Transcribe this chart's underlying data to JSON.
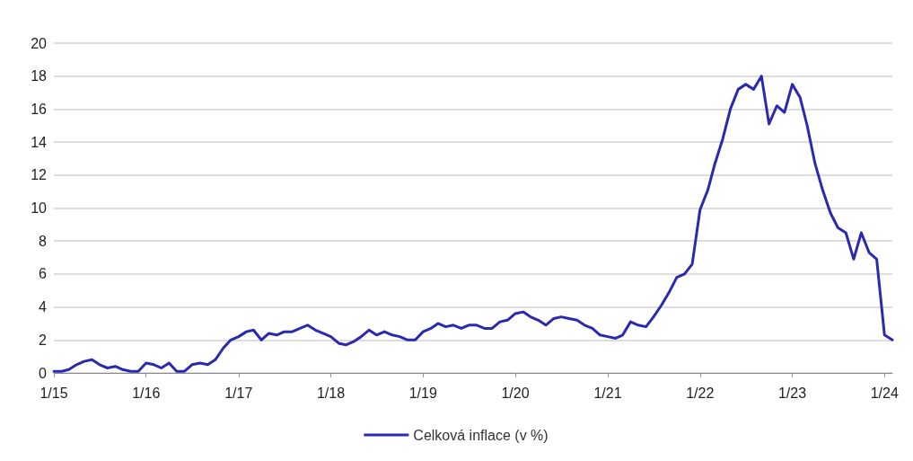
{
  "chart_data": {
    "type": "line",
    "x": [
      "2015-01",
      "2015-02",
      "2015-03",
      "2015-04",
      "2015-05",
      "2015-06",
      "2015-07",
      "2015-08",
      "2015-09",
      "2015-10",
      "2015-11",
      "2015-12",
      "2016-01",
      "2016-02",
      "2016-03",
      "2016-04",
      "2016-05",
      "2016-06",
      "2016-07",
      "2016-08",
      "2016-09",
      "2016-10",
      "2016-11",
      "2016-12",
      "2017-01",
      "2017-02",
      "2017-03",
      "2017-04",
      "2017-05",
      "2017-06",
      "2017-07",
      "2017-08",
      "2017-09",
      "2017-10",
      "2017-11",
      "2017-12",
      "2018-01",
      "2018-02",
      "2018-03",
      "2018-04",
      "2018-05",
      "2018-06",
      "2018-07",
      "2018-08",
      "2018-09",
      "2018-10",
      "2018-11",
      "2018-12",
      "2019-01",
      "2019-02",
      "2019-03",
      "2019-04",
      "2019-05",
      "2019-06",
      "2019-07",
      "2019-08",
      "2019-09",
      "2019-10",
      "2019-11",
      "2019-12",
      "2020-01",
      "2020-02",
      "2020-03",
      "2020-04",
      "2020-05",
      "2020-06",
      "2020-07",
      "2020-08",
      "2020-09",
      "2020-10",
      "2020-11",
      "2020-12",
      "2021-01",
      "2021-02",
      "2021-03",
      "2021-04",
      "2021-05",
      "2021-06",
      "2021-07",
      "2021-08",
      "2021-09",
      "2021-10",
      "2021-11",
      "2021-12",
      "2022-01",
      "2022-02",
      "2022-03",
      "2022-04",
      "2022-05",
      "2022-06",
      "2022-07",
      "2022-08",
      "2022-09",
      "2022-10",
      "2022-11",
      "2022-12",
      "2023-01",
      "2023-02",
      "2023-03",
      "2023-04",
      "2023-05",
      "2023-06",
      "2023-07",
      "2023-08",
      "2023-09",
      "2023-10",
      "2023-11",
      "2023-12",
      "2024-01",
      "2024-02"
    ],
    "series": [
      {
        "name": "Celková inflace (v %)",
        "color": "#2a2ab0",
        "values": [
          0.1,
          0.1,
          0.2,
          0.5,
          0.7,
          0.8,
          0.5,
          0.3,
          0.4,
          0.2,
          0.1,
          0.1,
          0.6,
          0.5,
          0.3,
          0.6,
          0.1,
          0.1,
          0.5,
          0.6,
          0.5,
          0.8,
          1.5,
          2.0,
          2.2,
          2.5,
          2.6,
          2.0,
          2.4,
          2.3,
          2.5,
          2.5,
          2.7,
          2.9,
          2.6,
          2.4,
          2.2,
          1.8,
          1.7,
          1.9,
          2.2,
          2.6,
          2.3,
          2.5,
          2.3,
          2.2,
          2.0,
          2.0,
          2.5,
          2.7,
          3.0,
          2.8,
          2.9,
          2.7,
          2.9,
          2.9,
          2.7,
          2.7,
          3.1,
          3.2,
          3.6,
          3.7,
          3.4,
          3.2,
          2.9,
          3.3,
          3.4,
          3.3,
          3.2,
          2.9,
          2.7,
          2.3,
          2.2,
          2.1,
          2.3,
          3.1,
          2.9,
          2.8,
          3.4,
          4.1,
          4.9,
          5.8,
          6.0,
          6.6,
          9.9,
          11.1,
          12.7,
          14.2,
          16.0,
          17.2,
          17.5,
          17.2,
          18.0,
          15.1,
          16.2,
          15.8,
          17.5,
          16.7,
          15.0,
          12.7,
          11.1,
          9.7,
          8.8,
          8.5,
          6.9,
          8.5,
          7.3,
          6.9,
          2.3,
          2.0
        ]
      }
    ],
    "xlim": [
      "2015-01",
      "2024-02"
    ],
    "xticks": [
      {
        "value": "2015-01",
        "label": "1/15"
      },
      {
        "value": "2016-01",
        "label": "1/16"
      },
      {
        "value": "2017-01",
        "label": "1/17"
      },
      {
        "value": "2018-01",
        "label": "1/18"
      },
      {
        "value": "2019-01",
        "label": "1/19"
      },
      {
        "value": "2020-01",
        "label": "1/20"
      },
      {
        "value": "2021-01",
        "label": "1/21"
      },
      {
        "value": "2022-01",
        "label": "1/22"
      },
      {
        "value": "2023-01",
        "label": "1/23"
      },
      {
        "value": "2024-01",
        "label": "1/24"
      }
    ],
    "ylim": [
      0,
      20
    ],
    "yticks": [
      0,
      2,
      4,
      6,
      8,
      10,
      12,
      14,
      16,
      18,
      20
    ],
    "grid": "y",
    "legend": "bottom",
    "marker": "none",
    "line_style": "solid"
  }
}
